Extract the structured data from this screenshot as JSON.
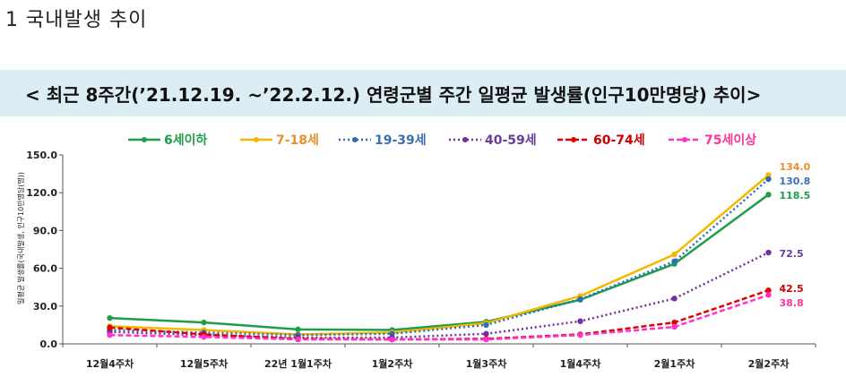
{
  "page": {
    "heading": "1  국내발생 추이",
    "banner": "< 최근 8주간(’21.12.19. ~’22.2.12.) 연령군별 주간 일평균 발생률(인구10만명당) 추이>"
  },
  "chart_data": {
    "type": "line",
    "title": "",
    "xlabel": "",
    "ylabel": "일평균 발생률(국내발생, 인구10만명당(명))",
    "ylim": [
      0,
      150
    ],
    "yticks": [
      "0.0",
      "30.0",
      "60.0",
      "90.0",
      "120.0",
      "150.0"
    ],
    "grid": false,
    "legend": "top",
    "categories": [
      "12월4주차",
      "12월5주차",
      "22년 1월1주차",
      "1월2주차",
      "1월3주차",
      "1월4주차",
      "2월1주차",
      "2월2주차"
    ],
    "series": [
      {
        "name": "6세이하",
        "color": "#1e9e4b",
        "style": "solid",
        "values": [
          20.5,
          17.0,
          11.5,
          11.0,
          17.5,
          35.0,
          63.5,
          118.5
        ],
        "last_label": "118.5",
        "label_color": "#1e9e4b"
      },
      {
        "name": "7-18세",
        "color": "#f5b800",
        "style": "solid",
        "values": [
          14.0,
          11.0,
          7.5,
          9.0,
          16.5,
          38.0,
          71.0,
          134.0
        ],
        "last_label": "134.0",
        "label_color": "#e8902a"
      },
      {
        "name": "19-39세",
        "color": "#2f6db8",
        "style": "dotted",
        "values": [
          11.0,
          9.0,
          7.0,
          8.0,
          15.0,
          35.5,
          65.5,
          130.8
        ],
        "last_label": "130.8",
        "label_color": "#3d6fb0"
      },
      {
        "name": "40-59세",
        "color": "#7030a0",
        "style": "dotted",
        "values": [
          9.5,
          7.0,
          5.0,
          5.0,
          8.0,
          18.0,
          36.0,
          72.5
        ],
        "last_label": "72.5",
        "label_color": "#6a3d9a"
      },
      {
        "name": "60-74세",
        "color": "#e00000",
        "style": "dashed",
        "values": [
          13.0,
          7.5,
          4.0,
          3.5,
          4.0,
          7.5,
          17.0,
          42.5
        ],
        "last_label": "42.5",
        "label_color": "#cc0000"
      },
      {
        "name": "75세이상",
        "color": "#ff33cc",
        "style": "dashed",
        "values": [
          7.0,
          5.5,
          3.5,
          3.5,
          3.5,
          7.0,
          13.5,
          38.8
        ],
        "last_label": "38.8",
        "label_color": "#ff3399"
      }
    ]
  }
}
